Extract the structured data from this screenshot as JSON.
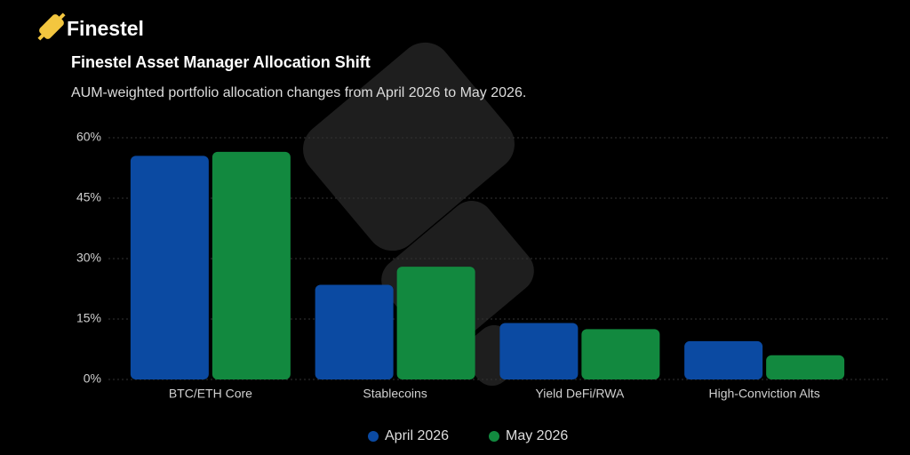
{
  "brand": "Finestel",
  "chart_data": {
    "type": "bar",
    "title": "Finestel Asset Manager Allocation Shift",
    "subtitle": "AUM-weighted portfolio allocation changes from April 2026 to May 2026.",
    "categories": [
      "BTC/ETH Core",
      "Stablecoins",
      "Yield DeFi/RWA",
      "High-Conviction Alts"
    ],
    "series": [
      {
        "name": "April 2026",
        "color": "#0b4aa2",
        "values": [
          55.5,
          23.5,
          14,
          9.5
        ]
      },
      {
        "name": "May 2026",
        "color": "#12893f",
        "values": [
          56.5,
          28,
          12.5,
          6
        ]
      }
    ],
    "ylim": [
      0,
      60
    ],
    "yticks": [
      {
        "value": 0,
        "label": "0%"
      },
      {
        "value": 15,
        "label": "15%"
      },
      {
        "value": 30,
        "label": "30%"
      },
      {
        "value": 45,
        "label": "45%"
      },
      {
        "value": 60,
        "label": "60%"
      }
    ],
    "grid": true,
    "legend": "bottom"
  }
}
